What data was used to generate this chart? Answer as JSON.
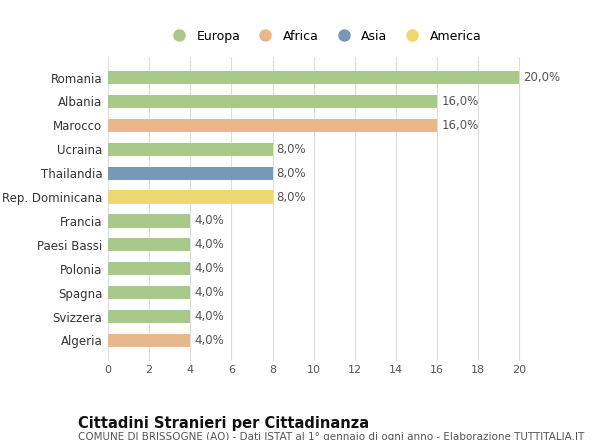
{
  "categories": [
    "Algeria",
    "Svizzera",
    "Spagna",
    "Polonia",
    "Paesi Bassi",
    "Francia",
    "Rep. Dominicana",
    "Thailandia",
    "Ucraina",
    "Marocco",
    "Albania",
    "Romania"
  ],
  "values": [
    4.0,
    4.0,
    4.0,
    4.0,
    4.0,
    4.0,
    8.0,
    8.0,
    8.0,
    16.0,
    16.0,
    20.0
  ],
  "continents": [
    "Africa",
    "Europa",
    "Europa",
    "Europa",
    "Europa",
    "Europa",
    "America",
    "Asia",
    "Europa",
    "Africa",
    "Europa",
    "Europa"
  ],
  "colors": {
    "Europa": "#a8c98a",
    "Africa": "#e8b88a",
    "Asia": "#7898b8",
    "America": "#f0d870"
  },
  "legend_order": [
    "Europa",
    "Africa",
    "Asia",
    "America"
  ],
  "title": "Cittadini Stranieri per Cittadinanza",
  "subtitle": "COMUNE DI BRISSOGNE (AO) - Dati ISTAT al 1° gennaio di ogni anno - Elaborazione TUTTITALIA.IT",
  "xlim": [
    0,
    21
  ],
  "xticks": [
    0,
    2,
    4,
    6,
    8,
    10,
    12,
    14,
    16,
    18,
    20
  ],
  "bar_height": 0.55,
  "background_color": "#ffffff",
  "grid_color": "#dddddd",
  "label_fontsize": 8.5,
  "tick_fontsize": 8,
  "ytick_fontsize": 8.5,
  "title_fontsize": 10.5,
  "subtitle_fontsize": 7.5,
  "legend_fontsize": 9
}
